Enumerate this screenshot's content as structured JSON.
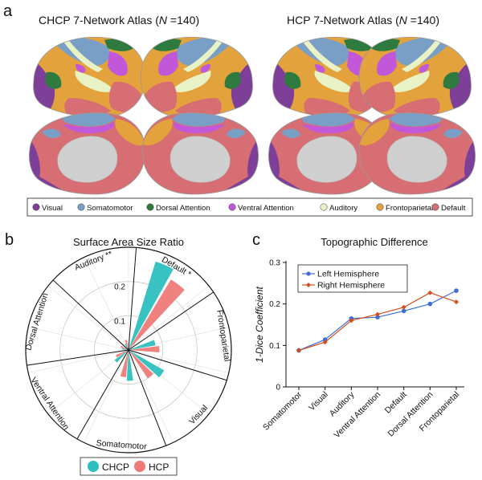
{
  "panel_a": {
    "label": "a",
    "atlases": [
      {
        "title_prefix": "CHCP 7-Network Atlas (",
        "n_symbol": "N",
        "title_suffix": " =140)"
      },
      {
        "title_prefix": "HCP 7-Network Atlas (",
        "n_symbol": "N",
        "title_suffix": " =140)"
      }
    ],
    "network_colors": {
      "Visual": "#7e3f98",
      "Somatomotor": "#7a9fc6",
      "Dorsal Attention": "#2f7a3f",
      "Ventral Attention": "#c257d9",
      "Auditory": "#e8f2c4",
      "Frontoparietal": "#e4a23c",
      "Default": "#d66e73"
    },
    "legend": [
      {
        "label": "Visual",
        "color": "#7e3f98"
      },
      {
        "label": "Somatomotor",
        "color": "#7a9fc6"
      },
      {
        "label": "Dorsal Attention",
        "color": "#2f7a3f"
      },
      {
        "label": "Ventral Attention",
        "color": "#c257d9"
      },
      {
        "label": "Auditory",
        "color": "#e8f2c4"
      },
      {
        "label": "Frontoparietal",
        "color": "#e4a23c"
      },
      {
        "label": "Default",
        "color": "#d66e73"
      }
    ]
  },
  "panel_b": {
    "label": "b"
  },
  "panel_c": {
    "label": "c"
  },
  "chart_data": [
    {
      "type": "polar-bar",
      "title": "Surface Area Size Ratio",
      "categories": [
        "Default",
        "Frontoparietal",
        "Visual",
        "Somatomotor",
        "Ventral Attention",
        "Dorsal Attention",
        "Auditory"
      ],
      "category_labels": [
        "Default *",
        "Frontoparietal",
        "Visual",
        "Somatomotor",
        "Ventral Attention",
        "Dorsal Attention",
        "Auditory **"
      ],
      "series": [
        {
          "name": "CHCP",
          "color": "#2ebfbf",
          "values": [
            0.27,
            0.08,
            0.12,
            0.09,
            0.05,
            0.02,
            0.02
          ]
        },
        {
          "name": "HCP",
          "color": "#ee7a78",
          "values": [
            0.24,
            0.09,
            0.1,
            0.08,
            0.04,
            0.025,
            0.03
          ]
        }
      ],
      "rlim": [
        0,
        0.3
      ],
      "rticks": [
        "0.1",
        "0.2"
      ],
      "legend": [
        "CHCP",
        "HCP"
      ],
      "legend_position": "bottom"
    },
    {
      "type": "line",
      "title": "Topographic Difference",
      "categories": [
        "Somatomotor",
        "Visual",
        "Auditory",
        "Ventral Attention",
        "Default",
        "Dorsal Attention",
        "Frontoparietal"
      ],
      "ylabel": "1-Dice Coefficient",
      "ylim": [
        0,
        0.3
      ],
      "yticks": [
        "0",
        "0.1",
        "0.2",
        "0.3"
      ],
      "series": [
        {
          "name": "Left Hemisphere",
          "color": "#3e6fd8",
          "values": [
            0.088,
            0.114,
            0.165,
            0.168,
            0.183,
            0.2,
            0.232
          ]
        },
        {
          "name": "Right Hemisphere",
          "color": "#d3501e",
          "values": [
            0.088,
            0.108,
            0.16,
            0.175,
            0.192,
            0.227,
            0.205
          ]
        }
      ],
      "legend_position": "top-left"
    }
  ]
}
